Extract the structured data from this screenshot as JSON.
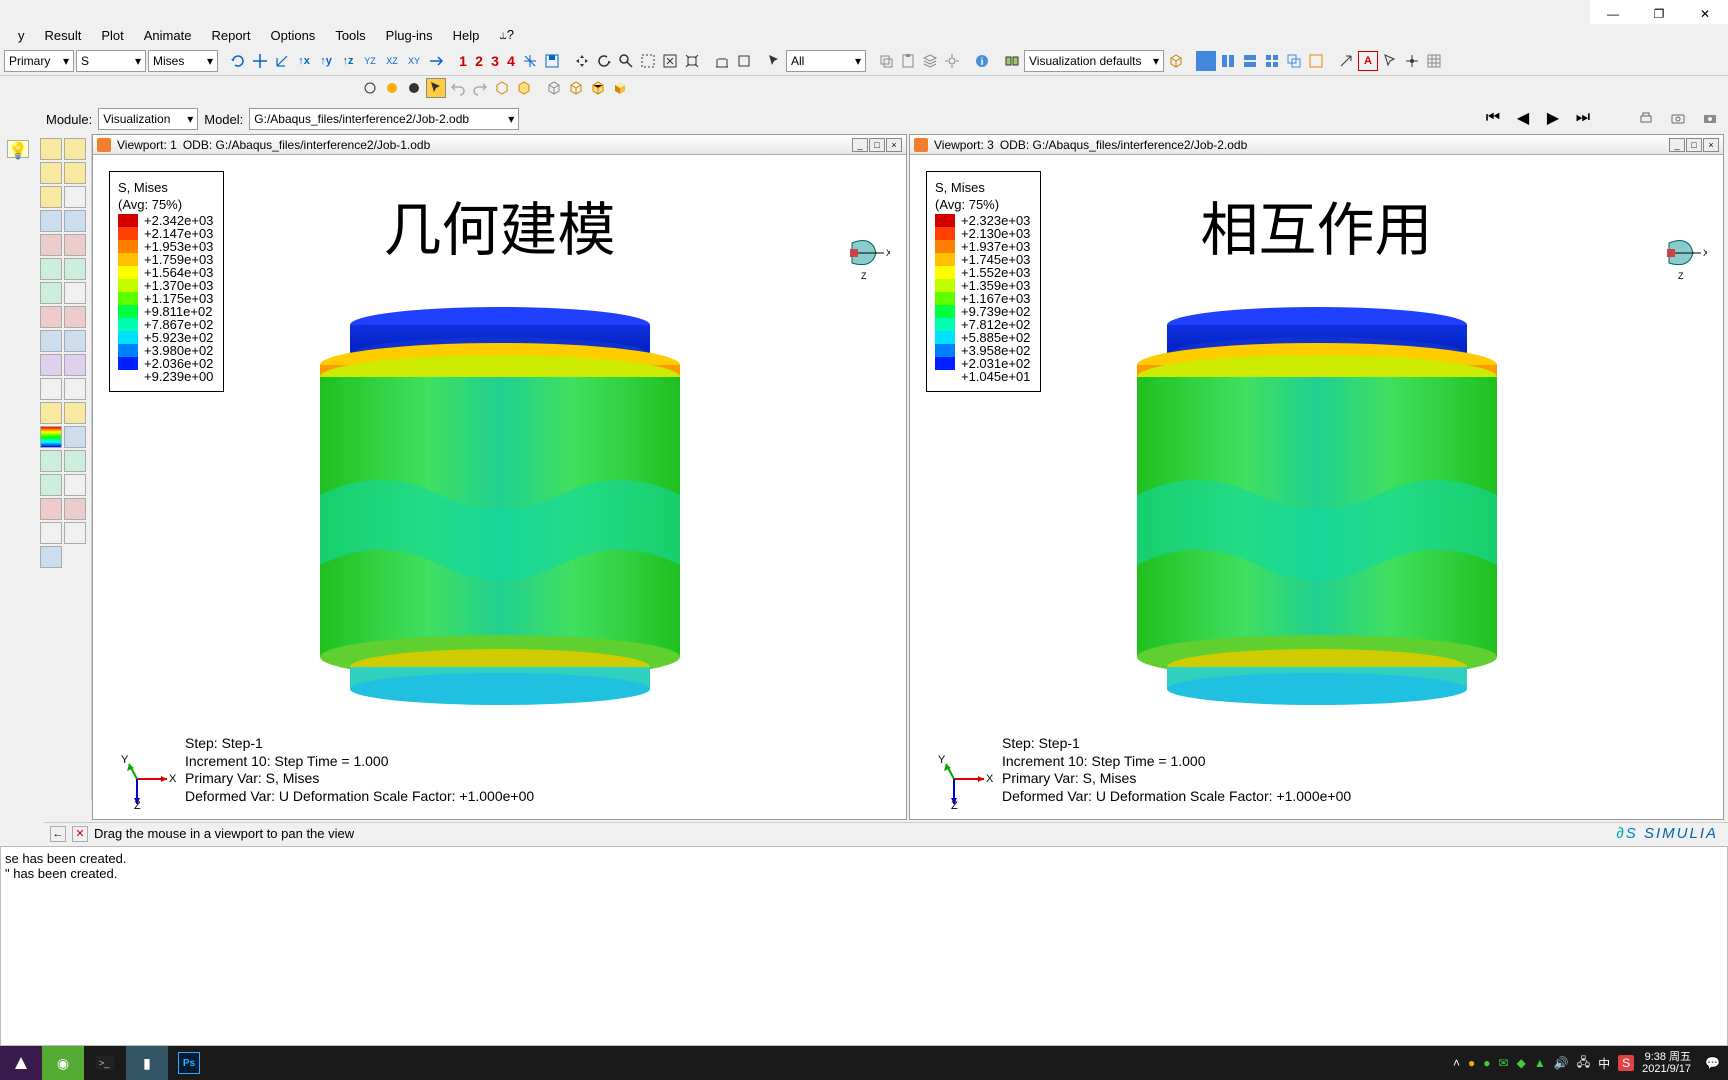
{
  "window_controls": {
    "min": "—",
    "max": "❐",
    "close": "✕"
  },
  "menu": [
    "y",
    "Result",
    "Plot",
    "Animate",
    "Report",
    "Options",
    "Tools",
    "Plug-ins",
    "Help",
    "⥿?"
  ],
  "toolbar": {
    "primary_dd": "Primary",
    "field_dd": "S",
    "component_dd": "Mises",
    "datum_labels": [
      "1",
      "2",
      "3",
      "4"
    ],
    "filter_dd": "All",
    "preset_dd": "Visualization defaults"
  },
  "modulebar": {
    "module_lbl": "Module:",
    "module_val": "Visualization",
    "model_lbl": "Model:",
    "model_val": "G:/Abaqus_files/interference2/Job-2.odb"
  },
  "playback": {
    "first": "⏮",
    "prev": "◀",
    "next": "▶",
    "last": "⏭"
  },
  "viewports": [
    {
      "header_title": "Viewport: 1",
      "header_odb": "ODB: G:/Abaqus_files/interference2/Job-1.odb",
      "big_label": "几何建模",
      "legend": {
        "title": "S, Mises",
        "subtitle": "(Avg: 75%)",
        "rows": [
          {
            "c": "#d40000",
            "v": "+2.342e+03"
          },
          {
            "c": "#ff4000",
            "v": "+2.147e+03"
          },
          {
            "c": "#ff8000",
            "v": "+1.953e+03"
          },
          {
            "c": "#ffc000",
            "v": "+1.759e+03"
          },
          {
            "c": "#ffff00",
            "v": "+1.564e+03"
          },
          {
            "c": "#c0ff00",
            "v": "+1.370e+03"
          },
          {
            "c": "#60ff00",
            "v": "+1.175e+03"
          },
          {
            "c": "#00ff40",
            "v": "+9.811e+02"
          },
          {
            "c": "#00ffb0",
            "v": "+7.867e+02"
          },
          {
            "c": "#00e0ff",
            "v": "+5.923e+02"
          },
          {
            "c": "#0080ff",
            "v": "+3.980e+02"
          },
          {
            "c": "#0020ff",
            "v": "+2.036e+02"
          },
          {
            "c": "#0000c0",
            "v": "+9.239e+00"
          }
        ]
      },
      "step": {
        "l1": "Step: Step-1",
        "l2": "Increment     10: Step Time =    1.000",
        "l3": "Primary Var: S, Mises",
        "l4": "Deformed Var: U   Deformation Scale Factor: +1.000e+00"
      }
    },
    {
      "header_title": "Viewport: 3",
      "header_odb": "ODB: G:/Abaqus_files/interference2/Job-2.odb",
      "big_label": "相互作用",
      "legend": {
        "title": "S, Mises",
        "subtitle": "(Avg: 75%)",
        "rows": [
          {
            "c": "#d40000",
            "v": "+2.323e+03"
          },
          {
            "c": "#ff4000",
            "v": "+2.130e+03"
          },
          {
            "c": "#ff8000",
            "v": "+1.937e+03"
          },
          {
            "c": "#ffc000",
            "v": "+1.745e+03"
          },
          {
            "c": "#ffff00",
            "v": "+1.552e+03"
          },
          {
            "c": "#c0ff00",
            "v": "+1.359e+03"
          },
          {
            "c": "#60ff00",
            "v": "+1.167e+03"
          },
          {
            "c": "#00ff40",
            "v": "+9.739e+02"
          },
          {
            "c": "#00ffb0",
            "v": "+7.812e+02"
          },
          {
            "c": "#00e0ff",
            "v": "+5.885e+02"
          },
          {
            "c": "#0080ff",
            "v": "+3.958e+02"
          },
          {
            "c": "#0020ff",
            "v": "+2.031e+02"
          },
          {
            "c": "#0000c0",
            "v": "+1.045e+01"
          }
        ]
      },
      "step": {
        "l1": "Step: Step-1",
        "l2": "Increment     10: Step Time =    1.000",
        "l3": "Primary Var: S, Mises",
        "l4": "Deformed Var: U   Deformation Scale Factor: +1.000e+00"
      }
    }
  ],
  "status": {
    "msg": "Drag the mouse in a viewport to pan the view"
  },
  "simulia": "SIMULIA",
  "console": {
    "l1": "se has been created.",
    "l2": "\" has been created."
  },
  "taskbar": {
    "time": "9:38 周五",
    "date": "2021/9/17"
  },
  "triad": {
    "x": "X",
    "y": "Y",
    "z": "Z"
  }
}
